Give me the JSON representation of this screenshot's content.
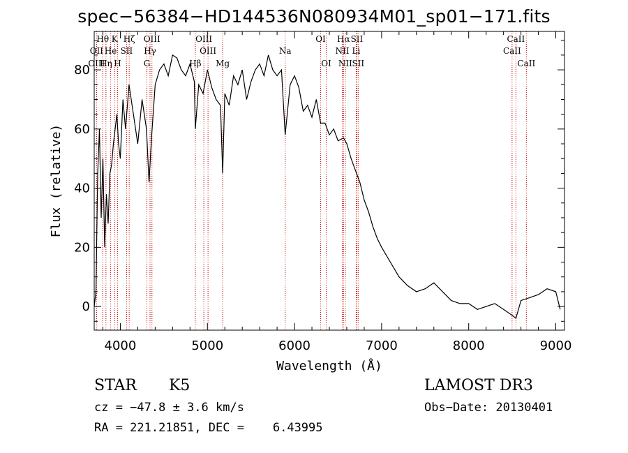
{
  "chart_data": {
    "type": "line",
    "title": "spec−56384−HD144536N080934M01_sp01−171.fits",
    "xlabel": "Wavelength (Å)",
    "ylabel": "Flux (relative)",
    "xlim": [
      3700,
      9100
    ],
    "ylim": [
      -8,
      93
    ],
    "xticks": [
      4000,
      5000,
      6000,
      7000,
      8000,
      9000
    ],
    "yticks": [
      0,
      20,
      40,
      60,
      80
    ],
    "series": [
      {
        "color": "#000000",
        "x": [
          3700,
          3720,
          3740,
          3760,
          3780,
          3800,
          3820,
          3840,
          3860,
          3880,
          3900,
          3920,
          3940,
          3960,
          3980,
          4000,
          4030,
          4060,
          4100,
          4150,
          4200,
          4250,
          4300,
          4330,
          4360,
          4400,
          4450,
          4500,
          4550,
          4600,
          4650,
          4700,
          4750,
          4800,
          4850,
          4861,
          4900,
          4950,
          5000,
          5050,
          5100,
          5150,
          5175,
          5200,
          5250,
          5300,
          5350,
          5400,
          5450,
          5500,
          5550,
          5600,
          5650,
          5700,
          5750,
          5800,
          5850,
          5893,
          5950,
          6000,
          6050,
          6100,
          6150,
          6200,
          6250,
          6300,
          6350,
          6400,
          6450,
          6500,
          6563,
          6600,
          6650,
          6700,
          6750,
          6800,
          6850,
          6900,
          6950,
          7000,
          7100,
          7200,
          7300,
          7400,
          7500,
          7600,
          7700,
          7800,
          7900,
          8000,
          8100,
          8200,
          8300,
          8400,
          8500,
          8542,
          8600,
          8700,
          8800,
          8900,
          9000,
          9050
        ],
        "y": [
          0,
          5,
          45,
          60,
          30,
          50,
          20,
          38,
          28,
          45,
          48,
          55,
          60,
          65,
          55,
          50,
          70,
          60,
          75,
          65,
          55,
          70,
          60,
          42,
          58,
          75,
          80,
          82,
          78,
          85,
          84,
          80,
          78,
          82,
          76,
          60,
          75,
          72,
          80,
          74,
          70,
          68,
          45,
          72,
          68,
          78,
          75,
          80,
          70,
          76,
          80,
          82,
          78,
          85,
          80,
          78,
          80,
          58,
          75,
          78,
          74,
          66,
          68,
          64,
          70,
          62,
          62,
          58,
          60,
          56,
          57,
          55,
          50,
          46,
          42,
          36,
          32,
          27,
          23,
          20,
          15,
          10,
          7,
          5,
          6,
          8,
          5,
          2,
          1,
          1,
          -1,
          0,
          1,
          -1,
          -3,
          -4,
          2,
          3,
          4,
          6,
          5,
          -1
        ]
      }
    ],
    "line_markers": [
      {
        "label": "Hθ",
        "x": 3798,
        "row": 0
      },
      {
        "label": "OII",
        "x": 3727,
        "row": 1
      },
      {
        "label": "OIII",
        "x": 3727,
        "row": 2
      },
      {
        "label": "Hη",
        "x": 3835,
        "row": 2
      },
      {
        "label": "He",
        "x": 3889,
        "row": 1
      },
      {
        "label": "K",
        "x": 3934,
        "row": 0
      },
      {
        "label": "H",
        "x": 3968,
        "row": 2
      },
      {
        "label": "Hζ",
        "x": 4102,
        "row": 0
      },
      {
        "label": "SII",
        "x": 4072,
        "row": 1
      },
      {
        "label": "OIII",
        "x": 4363,
        "row": 0
      },
      {
        "label": "Hγ",
        "x": 4341,
        "row": 1
      },
      {
        "label": "G",
        "x": 4305,
        "row": 2
      },
      {
        "label": "Hβ",
        "x": 4861,
        "row": 2
      },
      {
        "label": "OIII",
        "x": 4959,
        "row": 0
      },
      {
        "label": "OIII",
        "x": 5007,
        "row": 1
      },
      {
        "label": "Mg",
        "x": 5175,
        "row": 2
      },
      {
        "label": "Na",
        "x": 5893,
        "row": 1
      },
      {
        "label": "OI",
        "x": 6300,
        "row": 0
      },
      {
        "label": "OI",
        "x": 6364,
        "row": 2
      },
      {
        "label": "Hα",
        "x": 6563,
        "row": 0
      },
      {
        "label": "NII",
        "x": 6548,
        "row": 1
      },
      {
        "label": "NII",
        "x": 6583,
        "row": 2
      },
      {
        "label": "SII",
        "x": 6716,
        "row": 0
      },
      {
        "label": "Li",
        "x": 6708,
        "row": 1
      },
      {
        "label": "SII",
        "x": 6731,
        "row": 2
      },
      {
        "label": "CaII",
        "x": 8542,
        "row": 0
      },
      {
        "label": "CaII",
        "x": 8498,
        "row": 1
      },
      {
        "label": "CaII",
        "x": 8662,
        "row": 2
      }
    ]
  },
  "info": {
    "object_class": "STAR",
    "subclass": "K5",
    "survey": "LAMOST DR3",
    "redshift": "cz = −47.8 ± 3.6 km/s",
    "obs_date": "Obs−Date: 20130401",
    "coords": "RA = 221.21851, DEC =    6.43995"
  }
}
